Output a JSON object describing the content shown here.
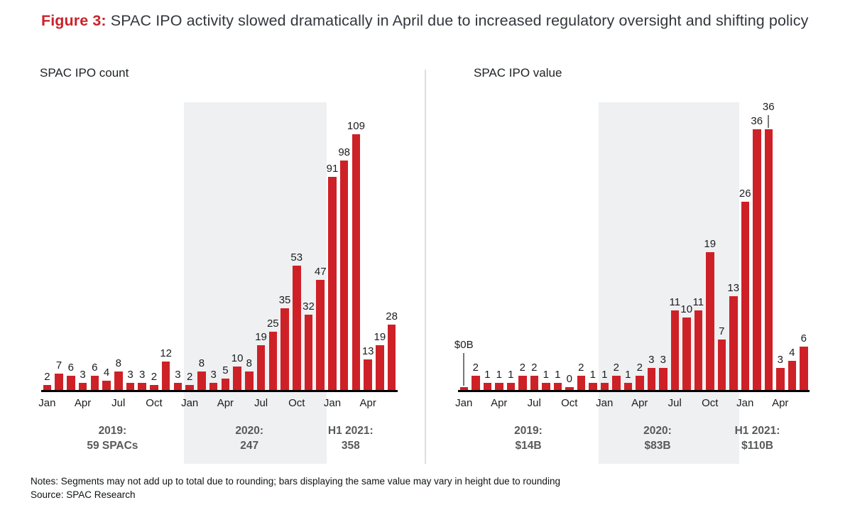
{
  "figure": {
    "label": "Figure 3:",
    "title": "SPAC IPO activity slowed dramatically in April due to increased regulatory oversight and shifting policy"
  },
  "notes": "Notes: Segments may not add up to total due to rounding; bars displaying the same value may vary in height due to rounding",
  "source": "Source: SPAC Research",
  "colors": {
    "bar_red": "#ce2127",
    "figure_label_red": "#c9232b",
    "shaded_band_gray": "#eff0f2",
    "segment_text_gray": "#58595b"
  },
  "chart_data": [
    {
      "type": "bar",
      "title": "SPAC IPO count",
      "x": [
        "Jan 2019",
        "Feb 2019",
        "Mar 2019",
        "Apr 2019",
        "May 2019",
        "Jun 2019",
        "Jul 2019",
        "Aug 2019",
        "Sep 2019",
        "Oct 2019",
        "Nov 2019",
        "Dec 2019",
        "Jan 2020",
        "Feb 2020",
        "Mar 2020",
        "Apr 2020",
        "May 2020",
        "Jun 2020",
        "Jul 2020",
        "Aug 2020",
        "Sep 2020",
        "Oct 2020",
        "Nov 2020",
        "Dec 2020",
        "Jan 2021",
        "Feb 2021",
        "Mar 2021",
        "Apr 2021",
        "May 2021",
        "Jun 2021"
      ],
      "values": [
        2,
        7,
        6,
        3,
        6,
        4,
        8,
        3,
        3,
        2,
        12,
        3,
        2,
        8,
        3,
        5,
        10,
        8,
        19,
        25,
        35,
        53,
        32,
        47,
        91,
        98,
        109,
        13,
        19,
        28
      ],
      "bar_labels": [
        "2",
        "7",
        "6",
        "3",
        "6",
        "4",
        "8",
        "3",
        "3",
        "2",
        "12",
        "3",
        "2",
        "8",
        "3",
        "5",
        "10",
        "8",
        "19",
        "25",
        "35",
        "53",
        "32",
        "47",
        "91",
        "98",
        "109",
        "13",
        "19",
        "28"
      ],
      "x_ticks": [
        {
          "i": 0,
          "label": "Jan"
        },
        {
          "i": 3,
          "label": "Apr"
        },
        {
          "i": 6,
          "label": "Jul"
        },
        {
          "i": 9,
          "label": "Oct"
        },
        {
          "i": 12,
          "label": "Jan"
        },
        {
          "i": 15,
          "label": "Apr"
        },
        {
          "i": 18,
          "label": "Jul"
        },
        {
          "i": 21,
          "label": "Oct"
        },
        {
          "i": 24,
          "label": "Jan"
        },
        {
          "i": 27,
          "label": "Apr"
        }
      ],
      "segments": [
        {
          "line1": "2019:",
          "line2": "59 SPACs",
          "from": 0,
          "to": 11
        },
        {
          "line1": "2020:",
          "line2": "247",
          "from": 12,
          "to": 23,
          "shaded": true
        },
        {
          "line1": "H1 2021:",
          "line2": "358",
          "from": 24,
          "to": 29
        }
      ],
      "leader_line_bars": [],
      "ylim": [
        0,
        124
      ],
      "grid": false,
      "legend": false
    },
    {
      "type": "bar",
      "title": "SPAC IPO value",
      "unit": "billions USD",
      "x": [
        "Jan 2019",
        "Feb 2019",
        "Mar 2019",
        "Apr 2019",
        "May 2019",
        "Jun 2019",
        "Jul 2019",
        "Aug 2019",
        "Sep 2019",
        "Oct 2019",
        "Nov 2019",
        "Dec 2019",
        "Jan 2020",
        "Feb 2020",
        "Mar 2020",
        "Apr 2020",
        "May 2020",
        "Jun 2020",
        "Jul 2020",
        "Aug 2020",
        "Sep 2020",
        "Oct 2020",
        "Nov 2020",
        "Dec 2020",
        "Jan 2021",
        "Feb 2021",
        "Mar 2021",
        "Apr 2021",
        "May 2021",
        "Jun 2021"
      ],
      "values": [
        0,
        2,
        1,
        1,
        1,
        2,
        2,
        1,
        1,
        0,
        2,
        1,
        1,
        2,
        1,
        2,
        3,
        3,
        11,
        10,
        11,
        19,
        7,
        13,
        26,
        36,
        36,
        3,
        4,
        6
      ],
      "bar_labels": [
        "$0B",
        "2",
        "1",
        "1",
        "1",
        "2",
        "2",
        "1",
        "1",
        "0",
        "2",
        "1",
        "1",
        "2",
        "1",
        "2",
        "3",
        "3",
        "11",
        "10",
        "11",
        "19",
        "7",
        "13",
        "26",
        "36",
        "36",
        "3",
        "4",
        "6"
      ],
      "x_ticks": [
        {
          "i": 0,
          "label": "Jan"
        },
        {
          "i": 3,
          "label": "Apr"
        },
        {
          "i": 6,
          "label": "Jul"
        },
        {
          "i": 9,
          "label": "Oct"
        },
        {
          "i": 12,
          "label": "Jan"
        },
        {
          "i": 15,
          "label": "Apr"
        },
        {
          "i": 18,
          "label": "Jul"
        },
        {
          "i": 21,
          "label": "Oct"
        },
        {
          "i": 24,
          "label": "Jan"
        },
        {
          "i": 27,
          "label": "Apr"
        }
      ],
      "segments": [
        {
          "line1": "2019:",
          "line2": "$14B",
          "from": 0,
          "to": 11
        },
        {
          "line1": "2020:",
          "line2": "$83B",
          "from": 12,
          "to": 23,
          "shaded": true
        },
        {
          "line1": "H1 2021:",
          "line2": "$110B",
          "from": 24,
          "to": 29
        }
      ],
      "leader_line_bars": [
        0,
        26
      ],
      "ylim": [
        0,
        40
      ],
      "grid": false,
      "legend": false
    }
  ]
}
